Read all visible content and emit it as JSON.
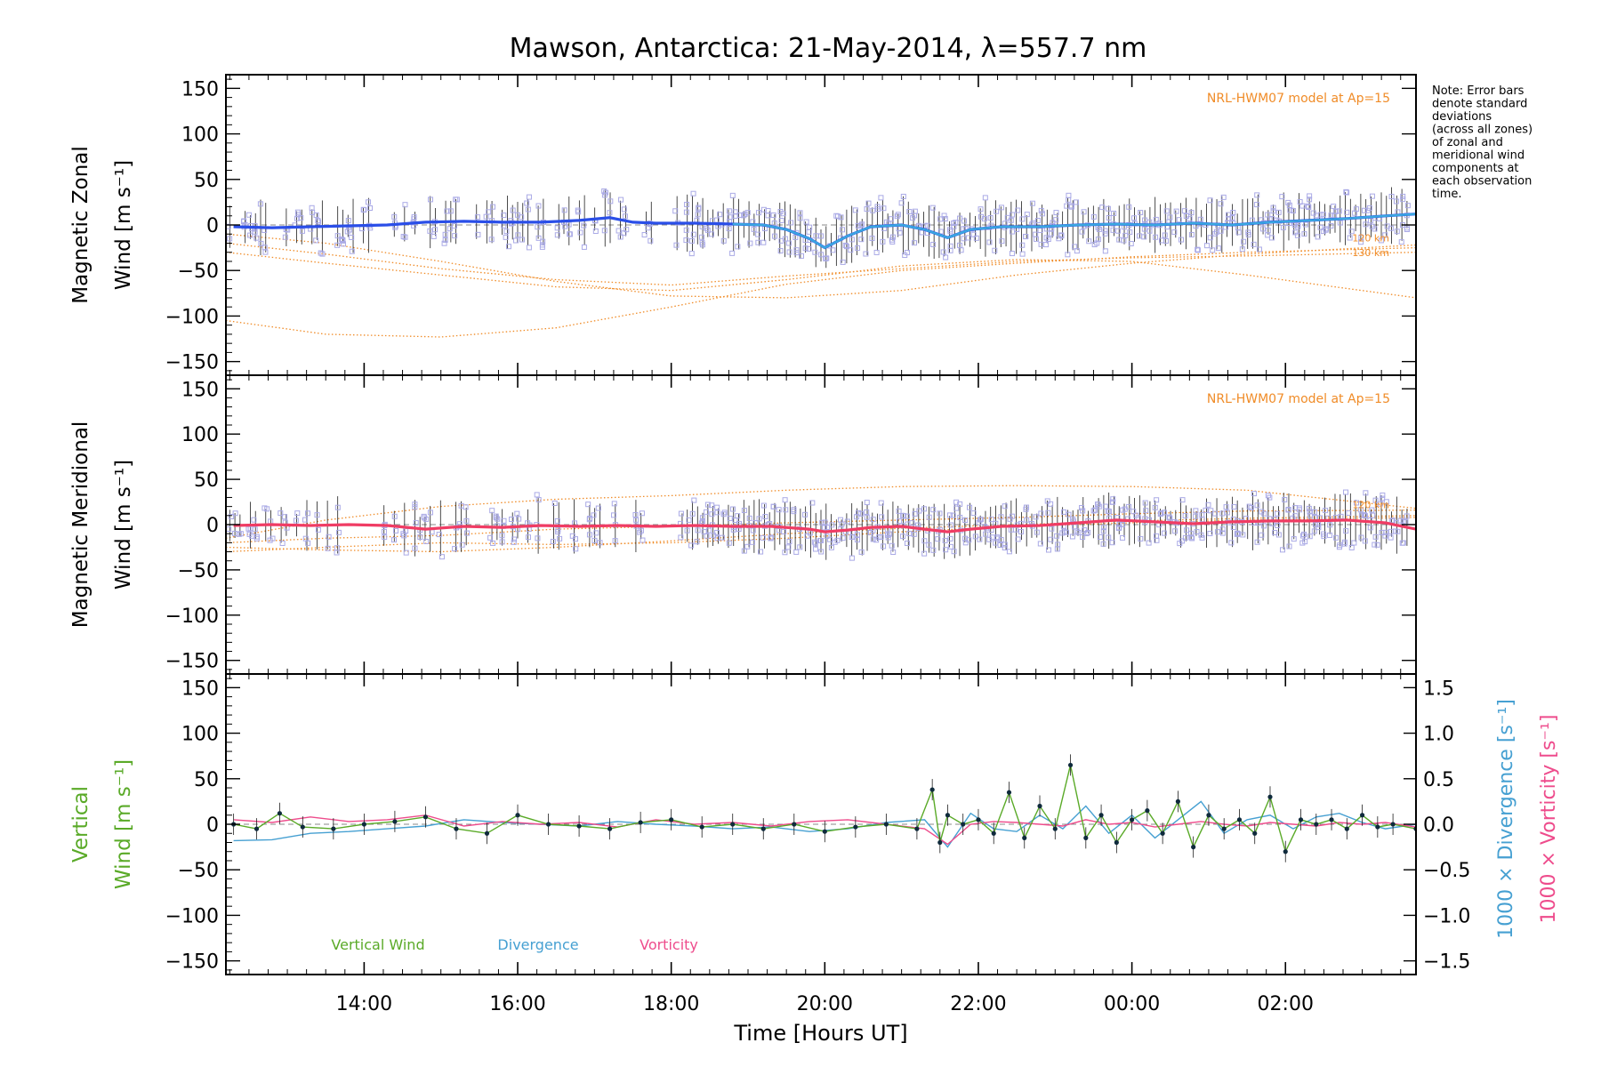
{
  "title": "Mawson, Antarctica: 21-May-2014, λ=557.7 nm",
  "note_lines": [
    "Note: Error bars",
    "denote standard",
    "deviations",
    "(across all zones)",
    "of zonal and",
    "meridional wind",
    "components at",
    "each observation",
    "time."
  ],
  "colors": {
    "zonal": "#2a4ee8",
    "zonal_light": "#3aa7e0",
    "meridional": "#f03c64",
    "scatter": "#aaaae6",
    "model": "#f08c28",
    "vertical": "#5aaa28",
    "divergence": "#46a0d2",
    "vorticity": "#ee4c8c",
    "errorbar": "#1e1e1e"
  },
  "chart_data": [
    {
      "type": "line",
      "panel": "zonal",
      "ylabel": "Magnetic Zonal Wind [m s⁻¹]",
      "ylabel_lines": [
        "Magnetic Zonal",
        "Wind [m s⁻¹]"
      ],
      "ylim": [
        -165,
        165
      ],
      "yticks": [
        -150,
        -100,
        -50,
        0,
        50,
        100,
        150
      ],
      "xlim": [
        12.2,
        27.7
      ],
      "model_label": "NRL-HWM07 model at Ap=15",
      "model_curve_labels": [
        "120 km",
        "130 km"
      ],
      "series": [
        {
          "name": "Magnetic Zonal Wind",
          "x": [
            12.3,
            12.8,
            13.3,
            13.8,
            14.3,
            14.8,
            15.3,
            15.8,
            16.3,
            16.8,
            17.2,
            17.5,
            17.8,
            18.3,
            18.8,
            19.2,
            19.5,
            19.8,
            20.0,
            20.3,
            20.6,
            21.0,
            21.3,
            21.6,
            21.9,
            22.3,
            22.8,
            23.3,
            23.8,
            24.3,
            24.8,
            25.3,
            25.8,
            26.3,
            26.8,
            27.3,
            27.7
          ],
          "y": [
            -2,
            -3,
            -2,
            -1,
            0,
            3,
            4,
            3,
            3,
            5,
            8,
            3,
            2,
            2,
            1,
            0,
            -5,
            -15,
            -25,
            -12,
            -2,
            0,
            -5,
            -14,
            -5,
            -2,
            -2,
            0,
            1,
            0,
            2,
            0,
            3,
            5,
            7,
            10,
            12
          ]
        },
        {
          "name": "NRL-HWM07 model 1",
          "x": [
            12.2,
            13.5,
            15.0,
            16.5,
            18.0,
            19.5,
            21.0,
            22.5,
            24.0,
            25.5,
            27.7
          ],
          "y": [
            -105,
            -120,
            -123,
            -113,
            -90,
            -65,
            -50,
            -42,
            -35,
            -30,
            -25
          ]
        },
        {
          "name": "NRL-HWM07 model 2",
          "x": [
            12.2,
            13.5,
            15.0,
            16.5,
            18.0,
            19.5,
            21.0,
            22.5,
            24.0,
            25.5,
            27.7
          ],
          "y": [
            -10,
            -20,
            -40,
            -62,
            -78,
            -80,
            -72,
            -55,
            -42,
            -32,
            -22
          ]
        },
        {
          "name": "NRL-HWM07 model 3",
          "x": [
            12.2,
            13.5,
            15.0,
            16.5,
            18.0,
            19.5,
            21.0,
            22.5,
            24.0,
            25.5,
            27.7
          ],
          "y": [
            -30,
            -42,
            -55,
            -68,
            -72,
            -60,
            -45,
            -38,
            -40,
            -55,
            -80
          ]
        },
        {
          "name": "NRL-HWM07 model 4",
          "x": [
            12.2,
            13.5,
            15.0,
            16.5,
            18.0,
            19.5,
            21.0,
            22.5,
            24.0,
            25.5,
            27.7
          ],
          "y": [
            -20,
            -32,
            -48,
            -60,
            -66,
            -56,
            -48,
            -40,
            -36,
            -34,
            -30
          ]
        }
      ]
    },
    {
      "type": "line",
      "panel": "meridional",
      "ylabel": "Magnetic Meridional Wind [m s⁻¹]",
      "ylabel_lines": [
        "Magnetic Meridional",
        "Wind [m s⁻¹]"
      ],
      "ylim": [
        -165,
        165
      ],
      "yticks": [
        -150,
        -100,
        -50,
        0,
        50,
        100,
        150
      ],
      "xlim": [
        12.2,
        27.7
      ],
      "model_label": "NRL-HWM07 model at Ap=15",
      "model_curve_labels": [
        "120 km",
        "130 km"
      ],
      "series": [
        {
          "name": "Magnetic Meridional Wind",
          "x": [
            12.3,
            12.8,
            13.3,
            13.8,
            14.3,
            14.8,
            15.3,
            15.8,
            16.3,
            16.8,
            17.3,
            17.8,
            18.3,
            18.8,
            19.3,
            19.8,
            20.0,
            20.3,
            20.6,
            21.0,
            21.3,
            21.6,
            21.9,
            22.3,
            22.8,
            23.3,
            23.8,
            24.3,
            24.8,
            25.3,
            25.8,
            26.3,
            26.8,
            27.3,
            27.7
          ],
          "y": [
            -1,
            0,
            -1,
            0,
            -1,
            -5,
            -2,
            -3,
            -1,
            -2,
            -1,
            -2,
            -1,
            -2,
            -2,
            -5,
            -8,
            -6,
            -3,
            -2,
            -5,
            -8,
            -5,
            -2,
            -1,
            2,
            5,
            3,
            1,
            3,
            4,
            4,
            5,
            2,
            -5
          ]
        },
        {
          "name": "NRL-HWM07 model 1",
          "x": [
            12.2,
            13.5,
            15.0,
            16.5,
            18.0,
            19.5,
            21.0,
            22.5,
            24.0,
            25.5,
            27.7
          ],
          "y": [
            -15,
            5,
            20,
            28,
            32,
            38,
            42,
            43,
            42,
            38,
            18
          ]
        },
        {
          "name": "NRL-HWM07 model 2",
          "x": [
            12.2,
            13.5,
            15.0,
            16.5,
            18.0,
            19.5,
            21.0,
            22.5,
            24.0,
            25.5,
            27.7
          ],
          "y": [
            -20,
            -15,
            -12,
            -5,
            -2,
            2,
            5,
            8,
            12,
            15,
            16
          ]
        },
        {
          "name": "NRL-HWM07 model 3",
          "x": [
            12.2,
            13.5,
            15.0,
            16.5,
            18.0,
            19.5,
            21.0,
            22.5,
            24.0,
            25.5,
            27.7
          ],
          "y": [
            -30,
            -25,
            -20,
            -22,
            -20,
            -15,
            -8,
            -2,
            2,
            5,
            8
          ]
        },
        {
          "name": "NRL-HWM07 model 4",
          "x": [
            12.2,
            13.5,
            15.0,
            16.5,
            18.0,
            19.5,
            21.0,
            22.5,
            24.0,
            25.5,
            27.7
          ],
          "y": [
            -25,
            -28,
            -30,
            -25,
            -18,
            -10,
            -4,
            0,
            4,
            7,
            10
          ]
        }
      ]
    },
    {
      "type": "line",
      "panel": "vertical",
      "ylabel": "Vertical Wind [m s⁻¹]",
      "ylabel_lines": [
        "Vertical",
        "Wind [m s⁻¹]"
      ],
      "ylim": [
        -165,
        165
      ],
      "yticks": [
        -150,
        -100,
        -50,
        0,
        50,
        100,
        150
      ],
      "xlim": [
        12.2,
        27.7
      ],
      "xticks": [
        14,
        16,
        18,
        20,
        22,
        24,
        26
      ],
      "xtick_labels": [
        "14:00",
        "16:00",
        "18:00",
        "20:00",
        "22:00",
        "00:00",
        "02:00"
      ],
      "xlabel": "Time [Hours UT]",
      "y2label_div": "1000 × Divergence [s⁻¹]",
      "y2label_vort": "1000 × Vorticity [s⁻¹]",
      "y2lim": [
        -1.65,
        1.65
      ],
      "y2ticks": [
        -1.5,
        -1.0,
        -0.5,
        0.0,
        0.5,
        1.0,
        1.5
      ],
      "y2tick_labels": [
        "−1.5",
        "−1.0",
        "−0.5",
        "0.0",
        "0.5",
        "1.0",
        "1.5"
      ],
      "legend": [
        "Vertical Wind",
        "Divergence",
        "Vorticity"
      ],
      "series": [
        {
          "name": "Vertical Wind",
          "axis": "left",
          "x": [
            12.3,
            12.6,
            12.9,
            13.2,
            13.6,
            14.0,
            14.4,
            14.8,
            15.2,
            15.6,
            16.0,
            16.4,
            16.8,
            17.2,
            17.6,
            18.0,
            18.4,
            18.8,
            19.2,
            19.6,
            20.0,
            20.4,
            20.8,
            21.2,
            21.4,
            21.5,
            21.6,
            21.8,
            22.0,
            22.2,
            22.4,
            22.6,
            22.8,
            23.0,
            23.2,
            23.4,
            23.6,
            23.8,
            24.0,
            24.2,
            24.4,
            24.6,
            24.8,
            25.0,
            25.2,
            25.4,
            25.6,
            25.8,
            26.0,
            26.2,
            26.4,
            26.6,
            26.8,
            27.0,
            27.2,
            27.4,
            27.7
          ],
          "y": [
            0,
            -5,
            12,
            -3,
            -5,
            0,
            3,
            8,
            -5,
            -10,
            10,
            0,
            -2,
            -5,
            2,
            5,
            -3,
            0,
            -5,
            0,
            -8,
            -3,
            0,
            -5,
            38,
            -20,
            10,
            0,
            5,
            -10,
            35,
            -15,
            20,
            -5,
            65,
            -15,
            10,
            -20,
            5,
            15,
            -10,
            25,
            -25,
            10,
            -5,
            5,
            -10,
            30,
            -30,
            5,
            0,
            5,
            -5,
            10,
            -3,
            0,
            -5
          ]
        },
        {
          "name": "Divergence",
          "axis": "right",
          "x": [
            12.3,
            12.8,
            13.3,
            13.8,
            14.3,
            14.8,
            15.3,
            15.8,
            16.3,
            16.8,
            17.3,
            17.8,
            18.3,
            18.8,
            19.3,
            19.8,
            20.3,
            20.8,
            21.3,
            21.6,
            21.9,
            22.2,
            22.5,
            22.8,
            23.1,
            23.4,
            23.7,
            24.0,
            24.3,
            24.6,
            24.9,
            25.2,
            25.5,
            25.8,
            26.1,
            26.4,
            26.7,
            27.0,
            27.3,
            27.7
          ],
          "y": [
            -0.18,
            -0.17,
            -0.1,
            -0.08,
            -0.05,
            -0.02,
            0.05,
            0.02,
            0.0,
            -0.02,
            0.03,
            0.0,
            -0.02,
            -0.05,
            -0.03,
            -0.08,
            -0.05,
            0.02,
            0.05,
            -0.25,
            0.12,
            -0.05,
            -0.08,
            0.1,
            -0.05,
            0.2,
            -0.1,
            0.1,
            -0.15,
            0.05,
            0.25,
            -0.1,
            0.05,
            0.1,
            -0.05,
            0.08,
            0.12,
            0.02,
            -0.05,
            0.0
          ]
        },
        {
          "name": "Vorticity",
          "axis": "right",
          "x": [
            12.3,
            12.8,
            13.3,
            13.8,
            14.3,
            14.8,
            15.3,
            15.8,
            16.3,
            16.8,
            17.3,
            17.8,
            18.3,
            18.8,
            19.3,
            19.8,
            20.3,
            20.8,
            21.3,
            21.6,
            21.9,
            22.2,
            22.5,
            22.8,
            23.1,
            23.4,
            23.7,
            24.0,
            24.3,
            24.6,
            24.9,
            25.2,
            25.5,
            25.8,
            26.1,
            26.4,
            26.7,
            27.0,
            27.3,
            27.7
          ],
          "y": [
            0.05,
            0.02,
            0.08,
            0.03,
            0.05,
            0.1,
            -0.02,
            0.03,
            0.0,
            0.02,
            -0.03,
            0.05,
            0.0,
            0.02,
            -0.02,
            0.03,
            0.05,
            0.0,
            -0.05,
            -0.22,
            0.0,
            0.03,
            0.02,
            0.0,
            -0.02,
            0.05,
            0.0,
            0.02,
            -0.03,
            0.0,
            0.03,
            0.0,
            -0.02,
            0.02,
            0.0,
            -0.02,
            0.02,
            0.0,
            0.02,
            -0.03
          ]
        }
      ]
    }
  ]
}
